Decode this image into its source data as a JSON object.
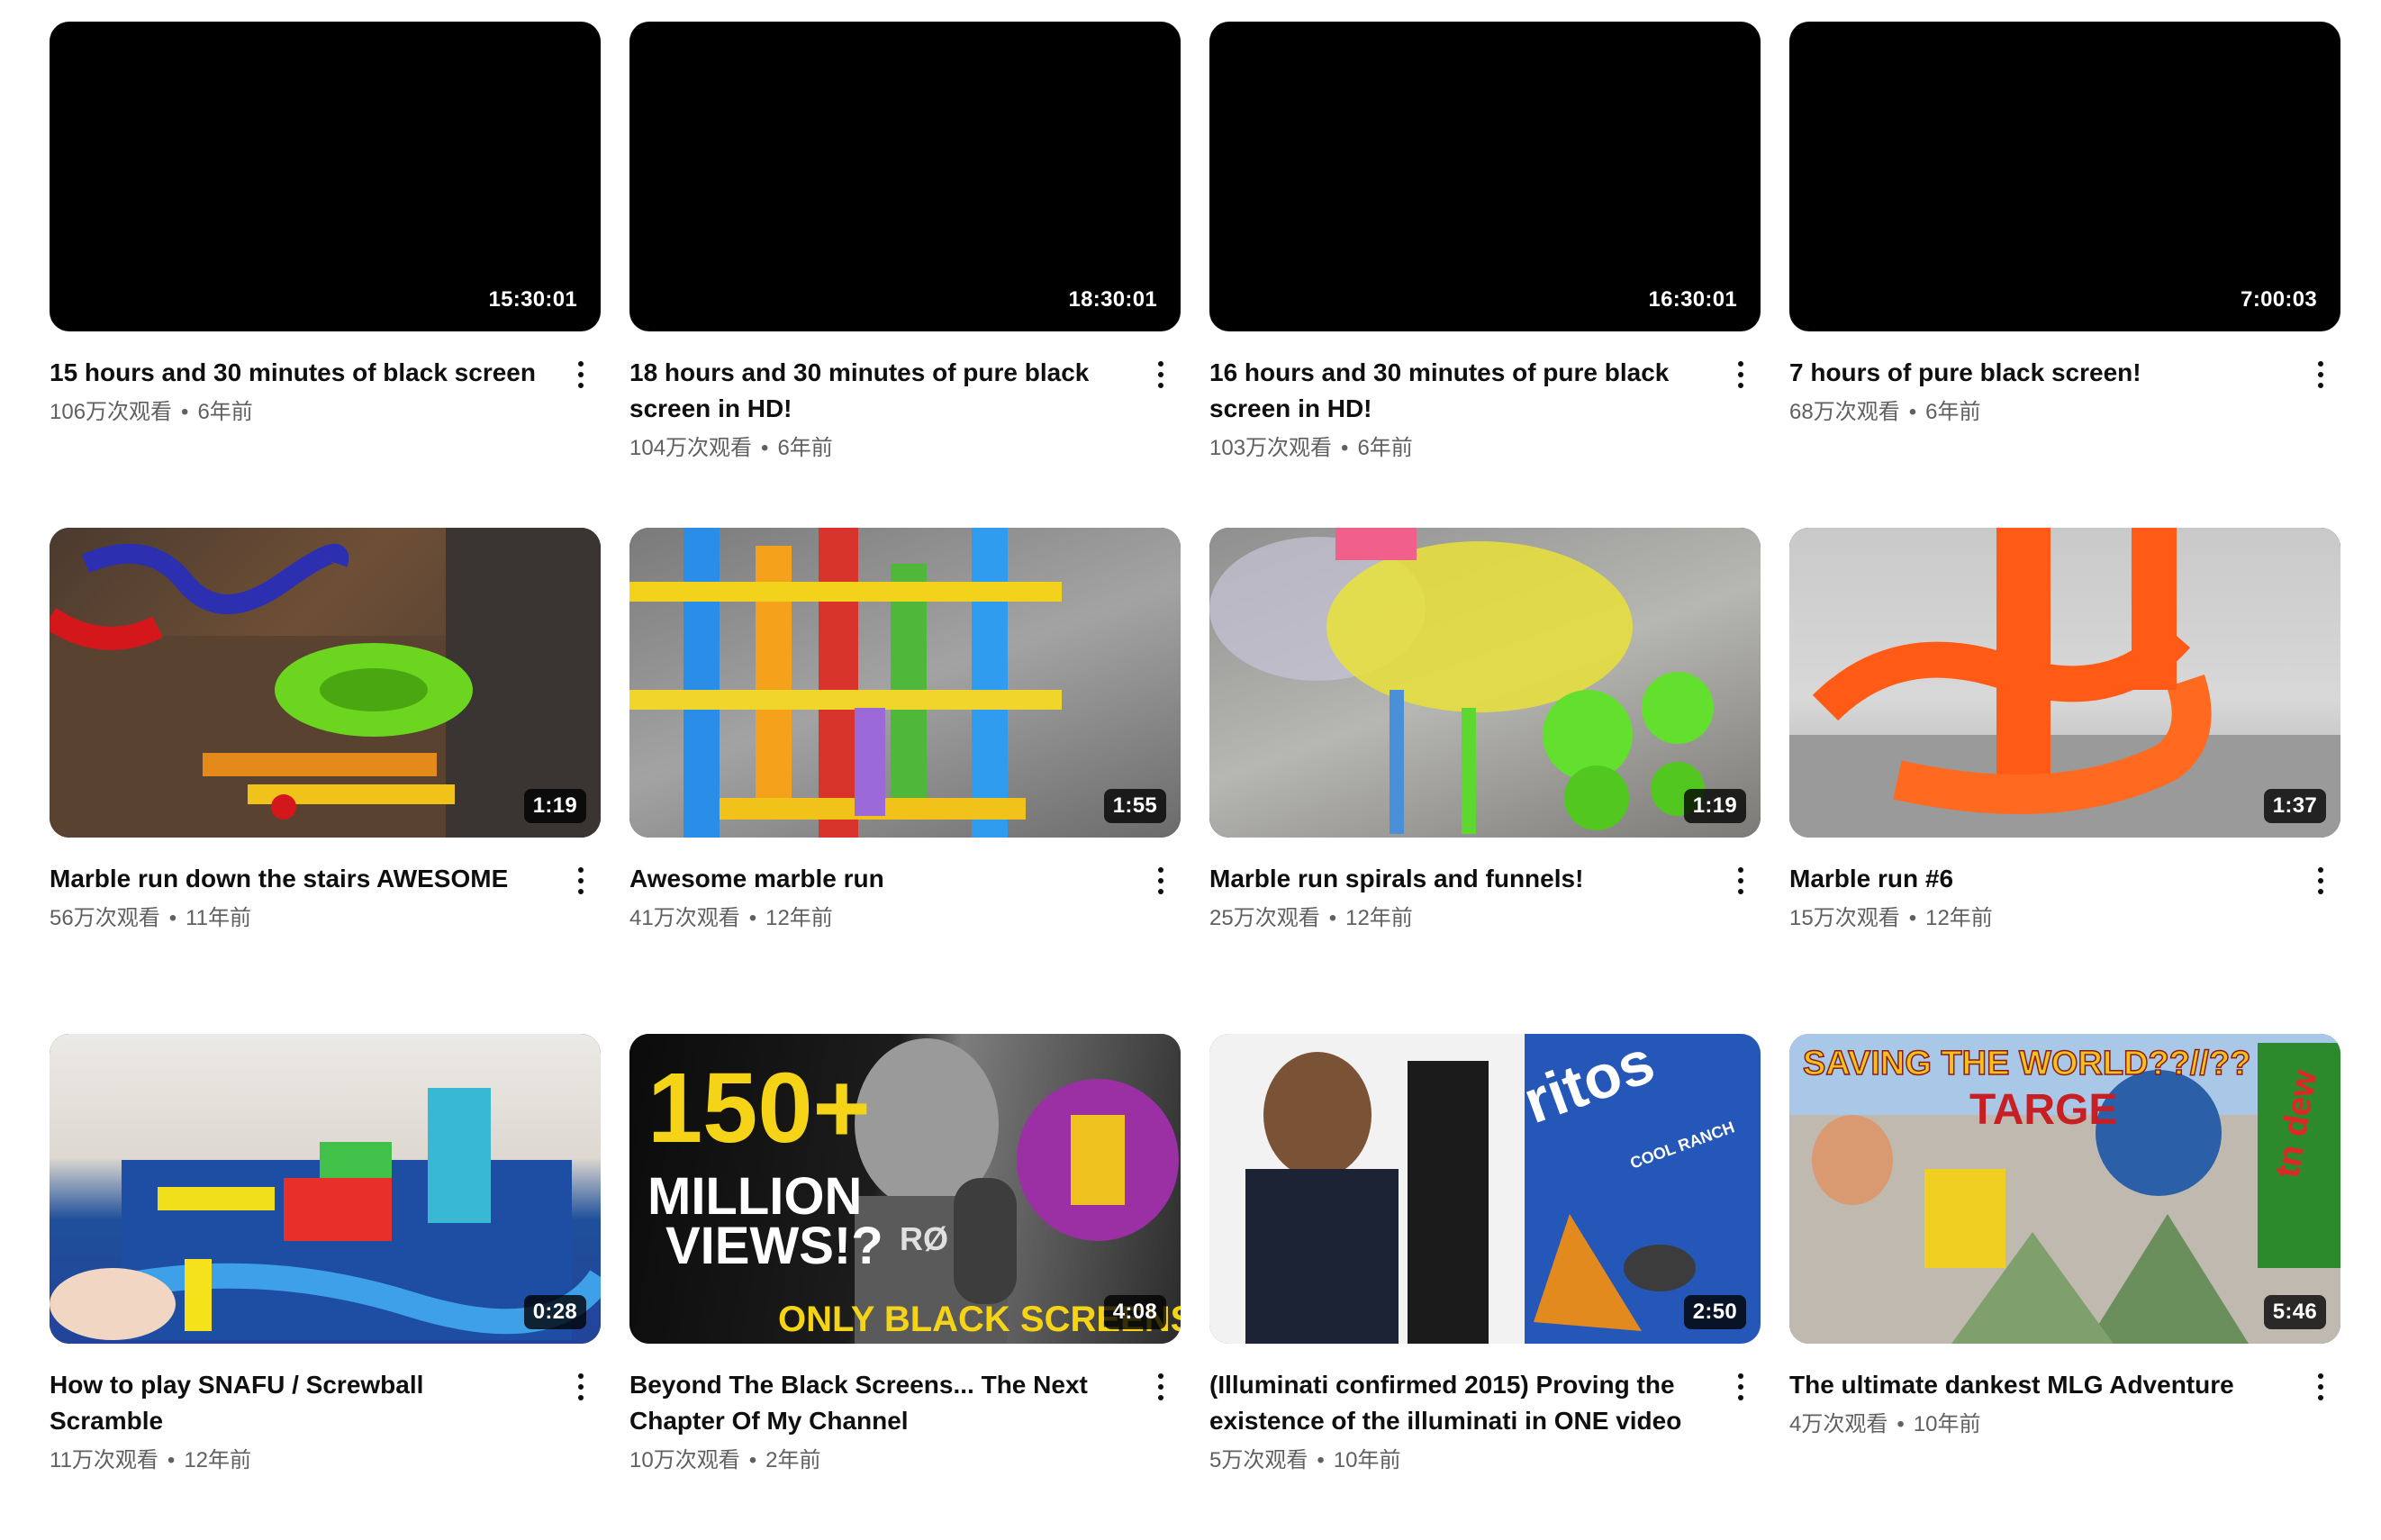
{
  "videos": [
    {
      "title": "15 hours and 30 minutes of black screen",
      "views": "106万次观看",
      "age": "6年前",
      "duration": "15:30:01",
      "thumbnail": "black"
    },
    {
      "title": "18 hours and 30 minutes of pure black screen in HD!",
      "views": "104万次观看",
      "age": "6年前",
      "duration": "18:30:01",
      "thumbnail": "black"
    },
    {
      "title": "16 hours and 30 minutes of pure black screen in HD!",
      "views": "103万次观看",
      "age": "6年前",
      "duration": "16:30:01",
      "thumbnail": "black"
    },
    {
      "title": "7 hours of pure black screen!",
      "views": "68万次观看",
      "age": "6年前",
      "duration": "7:00:03",
      "thumbnail": "black"
    },
    {
      "title": "Marble run down the stairs AWESOME",
      "views": "56万次观看",
      "age": "11年前",
      "duration": "1:19",
      "thumbnail": "marble-run-stairs"
    },
    {
      "title": "Awesome marble run",
      "views": "41万次观看",
      "age": "12年前",
      "duration": "1:55",
      "thumbnail": "marble-run-tubes"
    },
    {
      "title": "Marble run spirals and funnels!",
      "views": "25万次观看",
      "age": "12年前",
      "duration": "1:19",
      "thumbnail": "marble-run-funnels"
    },
    {
      "title": "Marble run #6",
      "views": "15万次观看",
      "age": "12年前",
      "duration": "1:37",
      "thumbnail": "marble-run-orange"
    },
    {
      "title": "How to play SNAFU / Screwball Scramble",
      "views": "11万次观看",
      "age": "12年前",
      "duration": "0:28",
      "thumbnail": "screwball-scramble"
    },
    {
      "title": "Beyond The Black Screens... The Next Chapter Of My Channel",
      "views": "10万次观看",
      "age": "2年前",
      "duration": "4:08",
      "thumbnail": "channel-announcement",
      "thumb_text": [
        "150+",
        "MILLION",
        "VIEWS!?",
        "ONLY BLACK SCREENS!",
        "RØ"
      ]
    },
    {
      "title": "(Illuminati confirmed 2015) Proving the existence of the illuminati in ONE video",
      "views": "5万次观看",
      "age": "10年前",
      "duration": "2:50",
      "thumbnail": "illuminati-meme",
      "thumb_text": [
        "ritos",
        "COOL RANCH"
      ]
    },
    {
      "title": "The ultimate dankest MLG Adventure",
      "views": "4万次观看",
      "age": "10年前",
      "duration": "5:46",
      "thumbnail": "mlg-meme",
      "thumb_text": [
        "SAVING THE WORLD??//??",
        "TARGE",
        "tn dew"
      ]
    }
  ],
  "separator": "•",
  "colors": {
    "title": "#0f0f0f",
    "meta": "#606060",
    "duration_bg": "#000000cc"
  }
}
